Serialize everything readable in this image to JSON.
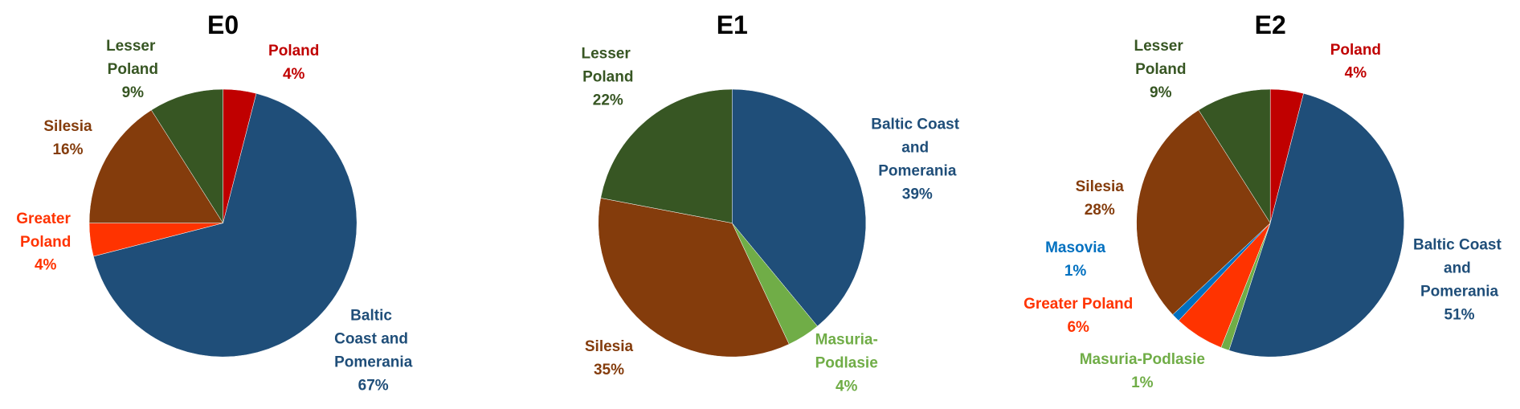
{
  "chart_data": [
    {
      "type": "pie",
      "title": "E0",
      "categories": [
        "Poland",
        "Baltic Coast and Pomerania",
        "Greater Poland",
        "Silesia",
        "Lesser Poland"
      ],
      "values": [
        4,
        67,
        4,
        16,
        9
      ],
      "value_labels": [
        "4%",
        "67%",
        "4%",
        "16%",
        "9%"
      ],
      "colors": [
        "#c00000",
        "#1f4e79",
        "#ff3300",
        "#843c0c",
        "#375623"
      ]
    },
    {
      "type": "pie",
      "title": "E1",
      "categories": [
        "Baltic Coast and Pomerania",
        "Masuria-Podlasie",
        "Silesia",
        "Lesser Poland"
      ],
      "values": [
        39,
        4,
        35,
        22
      ],
      "value_labels": [
        "39%",
        "4%",
        "35%",
        "22%"
      ],
      "colors": [
        "#1f4e79",
        "#70ad47",
        "#843c0c",
        "#375623"
      ]
    },
    {
      "type": "pie",
      "title": "E2",
      "categories": [
        "Poland",
        "Baltic Coast and Pomerania",
        "Masuria-Podlasie",
        "Greater Poland",
        "Masovia",
        "Silesia",
        "Lesser Poland"
      ],
      "values": [
        4,
        51,
        1,
        6,
        1,
        28,
        9
      ],
      "value_labels": [
        "4%",
        "51%",
        "1%",
        "6%",
        "1%",
        "28%",
        "9%"
      ],
      "colors": [
        "#c00000",
        "#1f4e79",
        "#70ad47",
        "#ff3300",
        "#0070c0",
        "#843c0c",
        "#375623"
      ]
    }
  ]
}
